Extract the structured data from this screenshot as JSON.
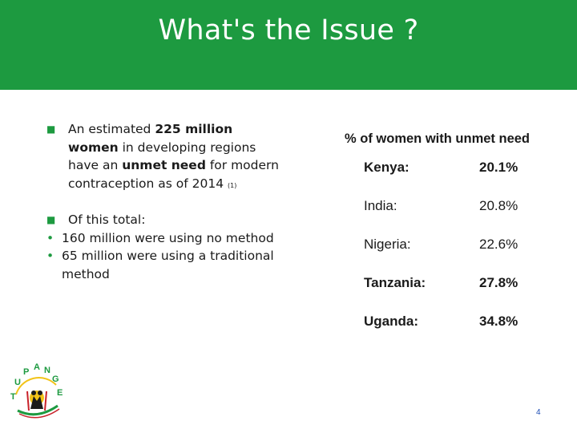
{
  "header": {
    "title": "What's the Issue ?"
  },
  "bullets": {
    "b1": {
      "pre": "An estimated ",
      "strong1": "225 million women",
      "mid": " in developing regions have an ",
      "strong2": "unmet need",
      "post": " for modern contraception as of 2014 ",
      "footnote": "(1)"
    },
    "b2": {
      "text": "Of this total:"
    },
    "sub": [
      "160 million were using no method",
      "65 million were using a traditional method"
    ]
  },
  "unmet_need": {
    "heading": "%  of women with unmet need",
    "rows": [
      {
        "country": "Kenya:",
        "value": "20.1%"
      },
      {
        "country": "India:",
        "value": "20.8%"
      },
      {
        "country": "Nigeria:",
        "value": "22.6%"
      },
      {
        "country": "Tanzania:",
        "value": "27.8%"
      },
      {
        "country": "Uganda:",
        "value": "34.8%"
      }
    ]
  },
  "logo": {
    "letters": [
      "T",
      "U",
      "P",
      "A",
      "N",
      "G",
      "E"
    ],
    "colors": {
      "green": "#1d9a40",
      "red": "#c8222a",
      "yellow": "#f2c318",
      "black": "#1a1a1a"
    }
  },
  "page_number": "4"
}
